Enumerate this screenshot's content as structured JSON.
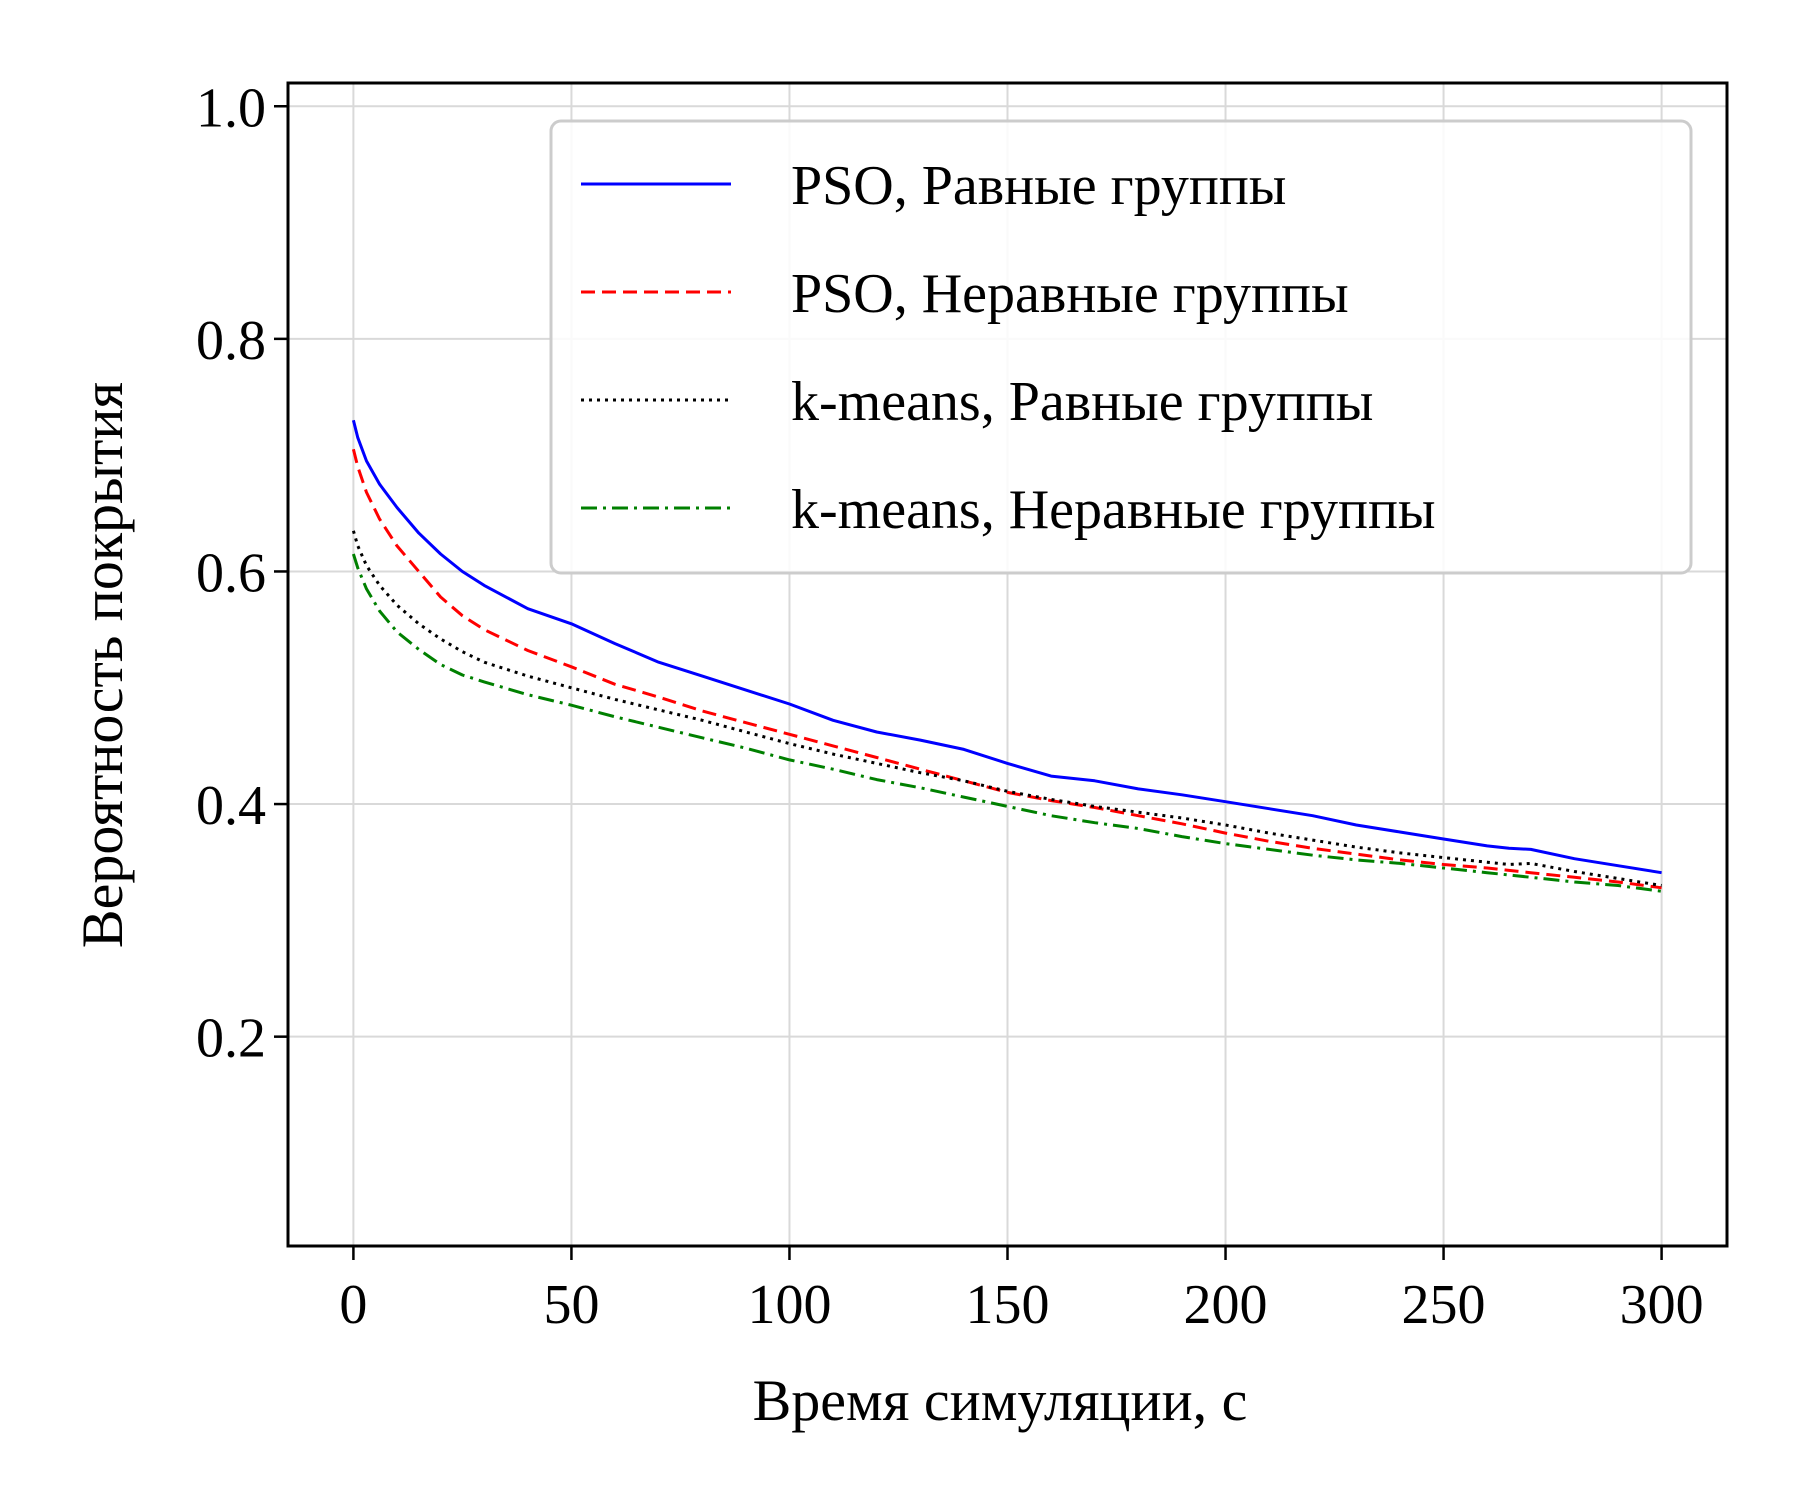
{
  "chart_data": {
    "type": "line",
    "xlabel": "Время симуляции, с",
    "ylabel": "Вероятность покрытия",
    "xlim": [
      -15,
      315
    ],
    "ylim": [
      0.02,
      1.02
    ],
    "xticks": [
      0,
      50,
      100,
      150,
      200,
      250,
      300
    ],
    "xtick_labels": [
      "0",
      "50",
      "100",
      "150",
      "200",
      "250",
      "300"
    ],
    "yticks": [
      0.2,
      0.4,
      0.6,
      0.8,
      1.0
    ],
    "ytick_labels": [
      "0.2",
      "0.4",
      "0.6",
      "0.8",
      "1.0"
    ],
    "grid": true,
    "legend_position": "top-right",
    "x": [
      0,
      1,
      3,
      6,
      10,
      15,
      20,
      25,
      30,
      40,
      50,
      60,
      70,
      80,
      90,
      100,
      110,
      120,
      130,
      140,
      150,
      160,
      170,
      180,
      190,
      200,
      210,
      220,
      230,
      240,
      250,
      260,
      265,
      270,
      280,
      290,
      300
    ],
    "series": [
      {
        "name": "PSO, Равные группы",
        "color": "#0000ff",
        "dash": "solid",
        "values": [
          0.73,
          0.715,
          0.695,
          0.675,
          0.655,
          0.633,
          0.615,
          0.6,
          0.588,
          0.568,
          0.555,
          0.538,
          0.522,
          0.51,
          0.498,
          0.486,
          0.472,
          0.462,
          0.455,
          0.447,
          0.435,
          0.424,
          0.42,
          0.413,
          0.408,
          0.402,
          0.396,
          0.39,
          0.382,
          0.376,
          0.37,
          0.364,
          0.362,
          0.361,
          0.353,
          0.347,
          0.341
        ]
      },
      {
        "name": "PSO, Неравные группы",
        "color": "#ff0000",
        "dash": "dashed",
        "values": [
          0.705,
          0.69,
          0.668,
          0.645,
          0.622,
          0.6,
          0.578,
          0.562,
          0.55,
          0.532,
          0.518,
          0.503,
          0.492,
          0.48,
          0.47,
          0.46,
          0.45,
          0.44,
          0.43,
          0.42,
          0.41,
          0.403,
          0.397,
          0.39,
          0.383,
          0.375,
          0.368,
          0.362,
          0.357,
          0.352,
          0.348,
          0.345,
          0.343,
          0.341,
          0.337,
          0.333,
          0.328
        ]
      },
      {
        "name": "k-means, Равные группы",
        "color": "#000000",
        "dash": "dotted",
        "values": [
          0.635,
          0.622,
          0.605,
          0.588,
          0.571,
          0.555,
          0.542,
          0.531,
          0.522,
          0.51,
          0.5,
          0.49,
          0.481,
          0.472,
          0.462,
          0.452,
          0.443,
          0.435,
          0.427,
          0.42,
          0.411,
          0.404,
          0.398,
          0.393,
          0.388,
          0.382,
          0.375,
          0.369,
          0.363,
          0.358,
          0.354,
          0.35,
          0.348,
          0.349,
          0.342,
          0.336,
          0.33
        ]
      },
      {
        "name": "k-means, Неравные группы",
        "color": "#008000",
        "dash": "dashdot",
        "values": [
          0.615,
          0.603,
          0.585,
          0.566,
          0.548,
          0.533,
          0.52,
          0.511,
          0.505,
          0.494,
          0.485,
          0.475,
          0.466,
          0.457,
          0.448,
          0.438,
          0.43,
          0.421,
          0.414,
          0.406,
          0.398,
          0.39,
          0.384,
          0.379,
          0.372,
          0.366,
          0.361,
          0.356,
          0.352,
          0.349,
          0.345,
          0.341,
          0.339,
          0.337,
          0.333,
          0.33,
          0.325
        ]
      }
    ]
  }
}
